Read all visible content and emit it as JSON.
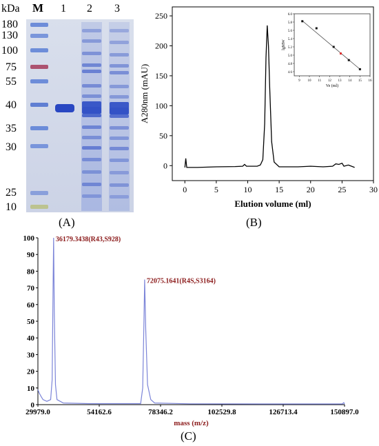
{
  "panelA": {
    "caption": "(A)",
    "unit_label": "kDa",
    "marker_label": "M",
    "lane_labels": [
      "1",
      "2",
      "3"
    ],
    "mw_labels": [
      "180",
      "130",
      "100",
      "75",
      "55",
      "40",
      "35",
      "30",
      "25",
      "10"
    ]
  },
  "panelB": {
    "caption": "(B)",
    "chart_data": {
      "type": "line",
      "xlabel": "Elution volume (ml)",
      "ylabel": "A280nm (mAU)",
      "xlim": [
        -2,
        30
      ],
      "ylim": [
        -25,
        265
      ],
      "x_ticks": [
        0,
        5,
        10,
        15,
        20,
        25,
        30
      ],
      "y_ticks": [
        0,
        50,
        100,
        150,
        200,
        250
      ],
      "points": [
        [
          0,
          -3
        ],
        [
          0.15,
          12
        ],
        [
          0.3,
          -3
        ],
        [
          2,
          -3
        ],
        [
          5,
          -2
        ],
        [
          8,
          -1.5
        ],
        [
          9.2,
          -1
        ],
        [
          9.5,
          2
        ],
        [
          9.8,
          -1
        ],
        [
          11.5,
          -1
        ],
        [
          12,
          1
        ],
        [
          12.4,
          10
        ],
        [
          12.7,
          70
        ],
        [
          12.9,
          180
        ],
        [
          13.1,
          234
        ],
        [
          13.3,
          200
        ],
        [
          13.5,
          130
        ],
        [
          13.8,
          40
        ],
        [
          14.2,
          6
        ],
        [
          15,
          -2
        ],
        [
          18,
          -2
        ],
        [
          20,
          -1
        ],
        [
          22,
          -2
        ],
        [
          23.5,
          -1
        ],
        [
          24,
          3
        ],
        [
          24.5,
          2
        ],
        [
          25,
          4
        ],
        [
          25.3,
          -1
        ],
        [
          26,
          1
        ],
        [
          27,
          -3
        ]
      ],
      "inset": {
        "type": "scatter",
        "xlabel": "Ve (ml)",
        "ylabel": "lgMW",
        "xlim": [
          8.5,
          16
        ],
        "ylim": [
          4.5,
          6.0
        ],
        "x_ticks": [
          9,
          10,
          11,
          12,
          13,
          14,
          15,
          16
        ],
        "y_ticks": [
          4.6,
          4.8,
          5.0,
          5.2,
          5.4,
          5.6,
          5.8,
          6.0
        ],
        "points": [
          [
            9.3,
            5.82
          ],
          [
            10.7,
            5.65
          ],
          [
            12.4,
            5.2
          ],
          [
            13.9,
            4.88
          ],
          [
            15.0,
            4.66
          ]
        ],
        "highlight": [
          13.1,
          5.04
        ],
        "fit_line": [
          [
            9.3,
            5.83
          ],
          [
            15.1,
            4.64
          ]
        ],
        "colors": {
          "points": "#111111",
          "highlight": "#e03030",
          "line": "#555555"
        }
      }
    }
  },
  "panelC": {
    "caption": "(C)",
    "chart_data": {
      "type": "line",
      "xlabel": "mass (m/z)",
      "ylabel": "",
      "xlim": [
        29979.0,
        150897.0
      ],
      "ylim": [
        0,
        100
      ],
      "x_ticks": [
        "29979.0",
        "54162.6",
        "78346.2",
        "102529.8",
        "126713.4",
        "150897.0"
      ],
      "y_ticks": [
        0,
        10,
        20,
        30,
        40,
        50,
        60,
        70,
        80,
        90,
        100
      ],
      "annotations": [
        {
          "text": "36179.3438(R43,S928)",
          "x": 36179.3438,
          "y": 100
        },
        {
          "text": "72075.1641(R4S,S3164)",
          "x": 72075.1641,
          "y": 75
        }
      ],
      "points": [
        [
          29979,
          9
        ],
        [
          30500,
          7
        ],
        [
          31200,
          5
        ],
        [
          32000,
          3
        ],
        [
          33500,
          2
        ],
        [
          35000,
          3
        ],
        [
          35600,
          15
        ],
        [
          35950,
          70
        ],
        [
          36179,
          100
        ],
        [
          36450,
          55
        ],
        [
          36900,
          12
        ],
        [
          37500,
          3
        ],
        [
          40000,
          1
        ],
        [
          50000,
          0.6
        ],
        [
          70500,
          0.6
        ],
        [
          71300,
          10
        ],
        [
          71800,
          50
        ],
        [
          72075,
          75
        ],
        [
          72500,
          45
        ],
        [
          73200,
          12
        ],
        [
          74500,
          3
        ],
        [
          76000,
          1
        ],
        [
          90000,
          0.5
        ],
        [
          120000,
          0.4
        ],
        [
          150000,
          0.4
        ],
        [
          150600,
          1.2
        ],
        [
          150897,
          0.3
        ]
      ],
      "colors": {
        "line": "#7b84d8",
        "annotation": "#8b1a1a",
        "axis_label": "#8b1a1a"
      }
    }
  }
}
